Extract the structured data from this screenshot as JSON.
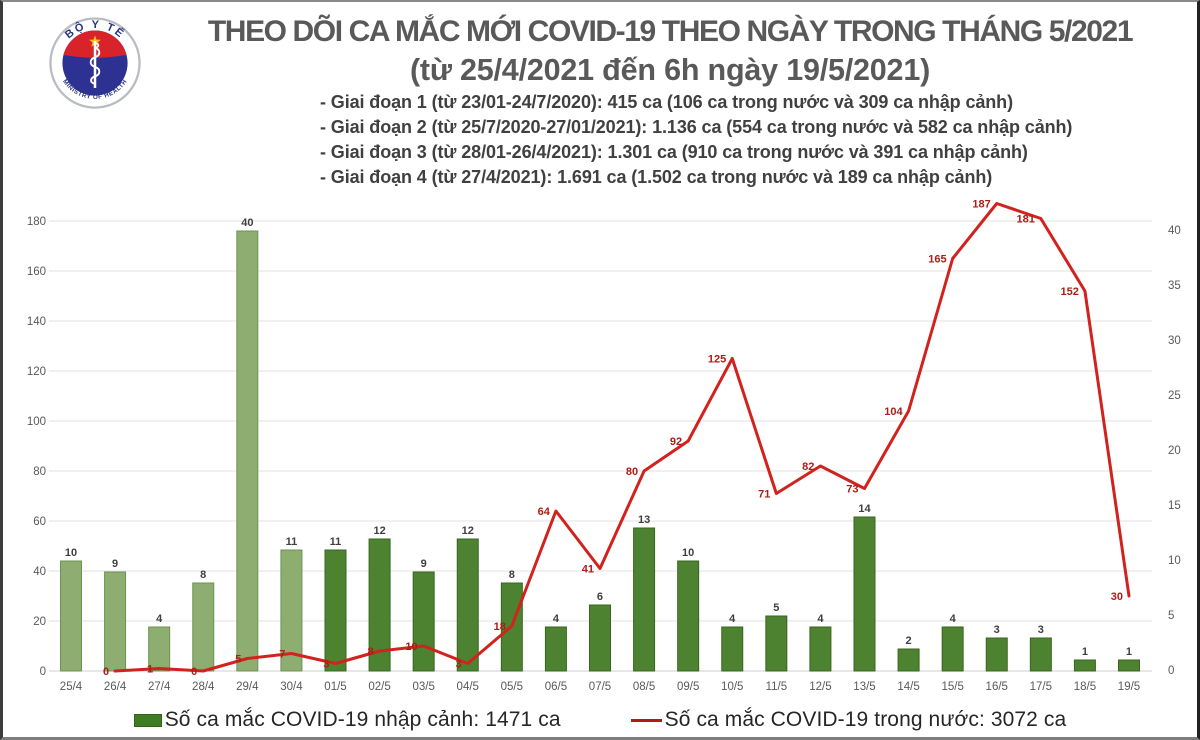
{
  "logo": {
    "top_text": "BỘ Y TẾ",
    "bottom_text": "MINISTRY OF HEALTH",
    "colors": {
      "ring": "#b9bdc2",
      "navy": "#2d3192",
      "red": "#d8232a",
      "star": "#f7c31c",
      "text": "#27357e"
    }
  },
  "header": {
    "title": "THEO DÕI CA MẮC MỚI COVID-19 THEO NGÀY TRONG THÁNG 5/2021",
    "subtitle": "(từ 25/4/2021 đến 6h ngày 19/5/2021)",
    "bullets": [
      "- Giai đoạn 1 (từ 23/01-24/7/2020): 415 ca (106 ca trong nước và 309 ca nhập cảnh)",
      "- Giai đoạn 2 (từ 25/7/2020-27/01/2021): 1.136 ca (554 ca trong nước và 582 ca nhập cảnh)",
      "- Giai đoạn 3 (từ 28/01-26/4/2021): 1.301 ca (910 ca trong nước và 391 ca nhập cảnh)",
      "- Giai đoạn 4 (từ 27/4/2021): 1.691 ca (1.502 ca trong nước và 189 ca nhập cảnh)"
    ]
  },
  "chart_data": {
    "type": "combo-bar-line",
    "categories": [
      "25/4",
      "26/4",
      "27/4",
      "28/4",
      "29/4",
      "30/4",
      "01/5",
      "02/5",
      "03/5",
      "04/5",
      "05/5",
      "06/5",
      "07/5",
      "08/5",
      "09/5",
      "10/5",
      "11/5",
      "12/5",
      "13/5",
      "14/5",
      "15/5",
      "16/5",
      "17/5",
      "18/5",
      "19/5"
    ],
    "series": [
      {
        "name": "Số ca mắc COVID-19 nhập cảnh",
        "type": "bar",
        "axis": "right",
        "values": [
          10,
          9,
          4,
          8,
          40,
          11,
          11,
          12,
          9,
          12,
          8,
          4,
          6,
          13,
          10,
          4,
          5,
          4,
          14,
          2,
          4,
          3,
          3,
          1,
          1
        ],
        "light_fill_count": 6,
        "fill_light": "#8dae70",
        "stroke_light": "#6d9353",
        "fill_dark": "#4d8230",
        "stroke_dark": "#3a661f",
        "label_color": "#3f3f3f"
      },
      {
        "name": "Số ca mắc COVID-19 trong nước",
        "type": "line",
        "axis": "left",
        "start_index": 1,
        "values": [
          null,
          0,
          1,
          0,
          5,
          7,
          3,
          8,
          10,
          3,
          18,
          64,
          41,
          80,
          92,
          125,
          71,
          82,
          73,
          104,
          165,
          187,
          181,
          152,
          30
        ],
        "color": "#d2221e",
        "label_color": "#ab1d15"
      }
    ],
    "left_axis": {
      "min": 0,
      "max": 180,
      "step": 20,
      "tick_color": "#595959"
    },
    "right_axis": {
      "min": 0,
      "max": 40,
      "step": 5,
      "tick_color": "#595959"
    },
    "x_axis": {
      "tick_color": "#595959"
    },
    "grid": {
      "show": true,
      "color": "#e2e2e2",
      "axis_line_color": "#cfcfcf"
    }
  },
  "legend": {
    "bar_label": "Số ca mắc COVID-19 nhập cảnh: 1471 ca",
    "line_label": "Số ca mắc COVID-19 trong nước: 3072 ca"
  }
}
